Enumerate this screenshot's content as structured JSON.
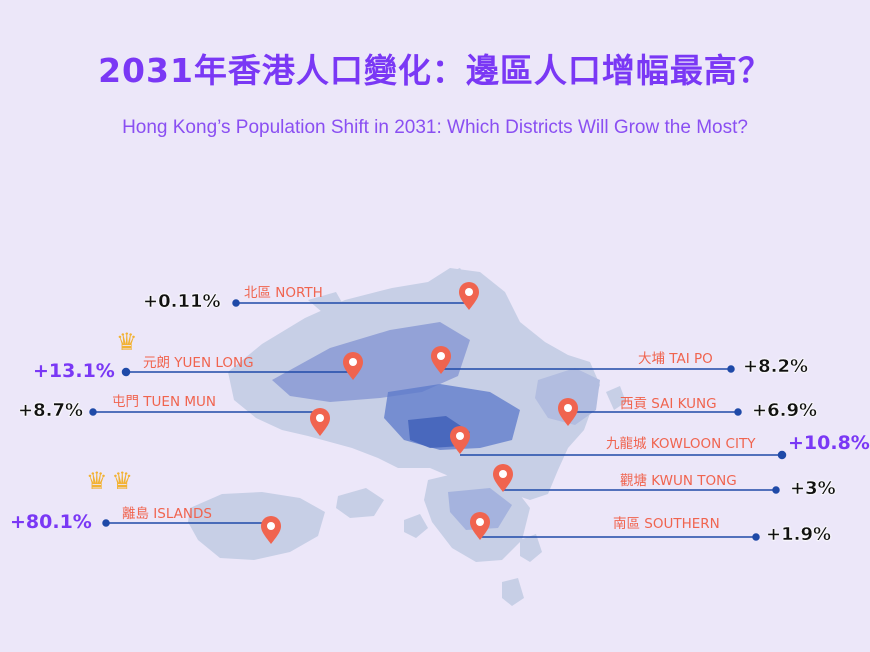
{
  "title": "2031年香港人口變化：邊區人口增幅最高？",
  "subtitle": "Hong Kong’s Population Shift in 2031: Which Districts Will Grow the Most?",
  "colors": {
    "accent": "#7a38f5",
    "pin": "#f0644f",
    "line": "#1f4aa8",
    "land": "#c7cfe6",
    "urban": "#5b78c9"
  },
  "districts": [
    {
      "label": "北區 NORTH",
      "change": "+0.11%"
    },
    {
      "label": "元朗 YUEN LONG",
      "change": "+13.1%"
    },
    {
      "label": "屯門 TUEN MUN",
      "change": "+8.7%"
    },
    {
      "label": "離島 ISLANDS",
      "change": "+80.1%"
    },
    {
      "label": "大埔 TAI PO",
      "change": "+8.2%"
    },
    {
      "label": "西貢 SAI KUNG",
      "change": "+6.9%"
    },
    {
      "label": "九龍城 KOWLOON CITY",
      "change": "+10.8%"
    },
    {
      "label": "觀塘 KWUN TONG",
      "change": "+3%"
    },
    {
      "label": "南區 SOUTHERN",
      "change": "+1.9%"
    }
  ],
  "crowns": {
    "yuen_long": "♛",
    "islands": "♛♛"
  }
}
